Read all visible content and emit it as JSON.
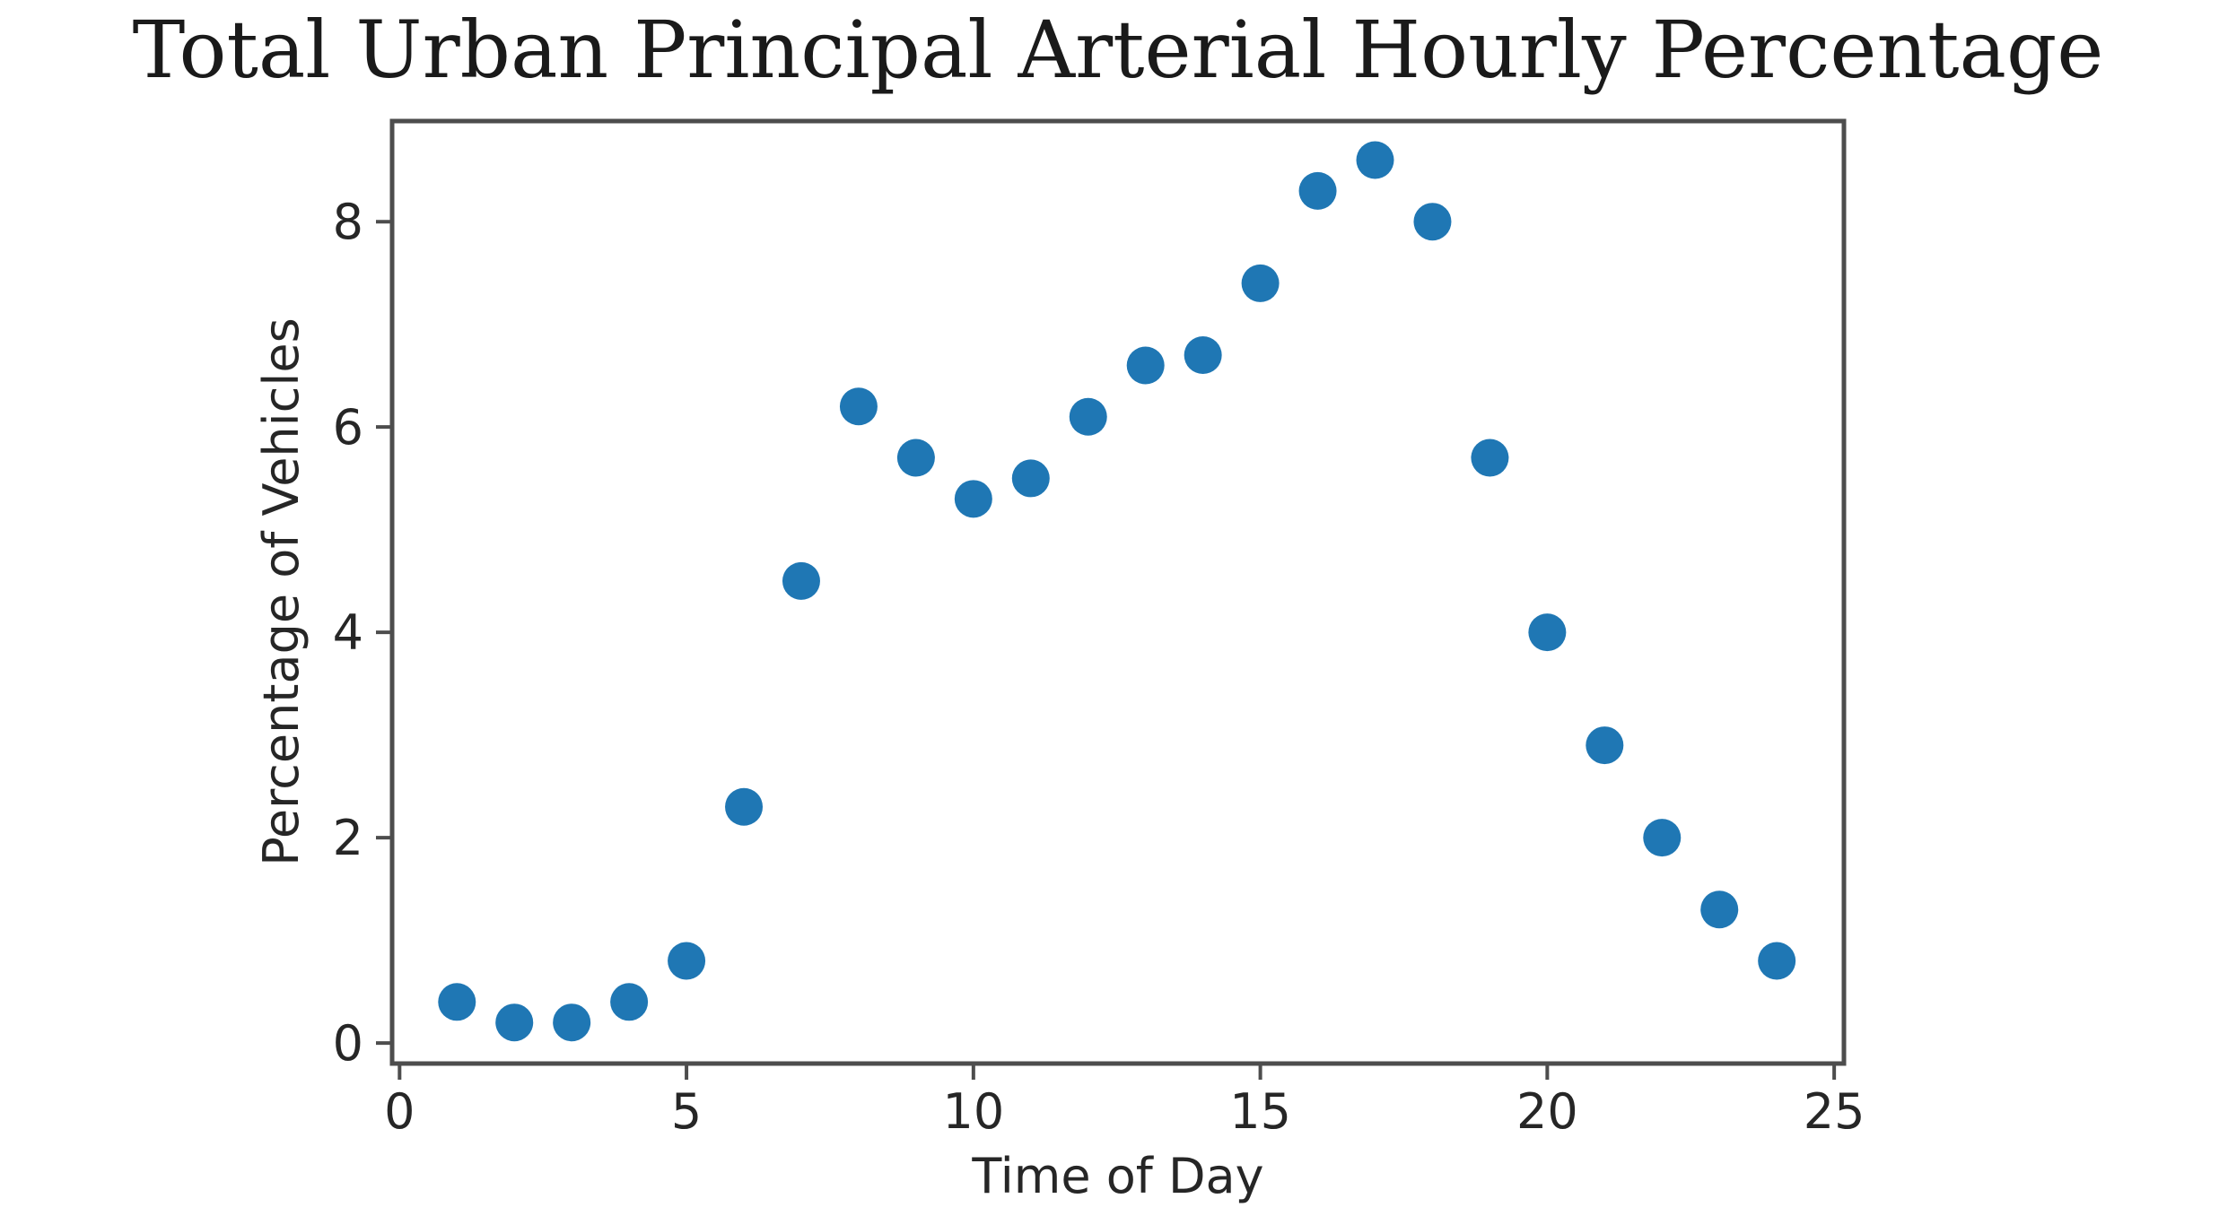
{
  "page": {
    "background_color": "#ffffff"
  },
  "chart_data": {
    "type": "scatter",
    "title": "Total Urban Principal Arterial Hourly Percentage",
    "xlabel": "Time of Day",
    "ylabel": "Percentage of Vehicles",
    "x": [
      1,
      2,
      3,
      4,
      5,
      6,
      7,
      8,
      9,
      10,
      11,
      12,
      13,
      14,
      15,
      16,
      17,
      18,
      19,
      20,
      21,
      22,
      23,
      24
    ],
    "values": [
      0.4,
      0.2,
      0.2,
      0.4,
      0.8,
      2.3,
      4.5,
      6.2,
      5.7,
      5.3,
      5.5,
      6.1,
      6.6,
      6.7,
      7.4,
      8.3,
      8.6,
      8.0,
      5.7,
      4.0,
      2.9,
      2.0,
      1.3,
      0.8
    ],
    "xticks": [
      0,
      5,
      10,
      15,
      20,
      25
    ],
    "yticks": [
      0,
      2,
      4,
      6,
      8
    ],
    "xlim": [
      -0.13,
      25.17
    ],
    "ylim": [
      -0.2,
      8.98
    ],
    "grid": false,
    "legend": false,
    "marker_color": "#1f77b4",
    "axis_color": "#4d4d4d",
    "text_color": "#262626"
  }
}
